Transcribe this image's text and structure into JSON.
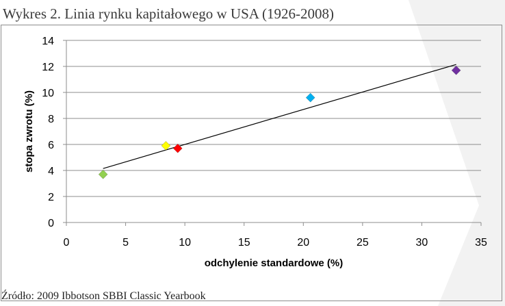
{
  "title": "Wykres 2. Linia rynku kapitałowego w USA (1926-2008)",
  "source": "Źródło: 2009 Ibbotson SBBI Classic Yearbook",
  "chart_data": {
    "type": "scatter",
    "title": "",
    "xlabel": "odchylenie standardowe (%)",
    "ylabel": "stopa zwrotu (%)",
    "xlim": [
      0,
      35
    ],
    "ylim": [
      0,
      14
    ],
    "x_ticks": [
      "0",
      "5",
      "10",
      "15",
      "20",
      "25",
      "30",
      "35"
    ],
    "y_ticks": [
      "0",
      "2",
      "4",
      "6",
      "8",
      "10",
      "12",
      "14"
    ],
    "grid": "horizontal",
    "legend": "none",
    "points": [
      {
        "x": 3.1,
        "y": 3.7,
        "color": "#92d050"
      },
      {
        "x": 8.4,
        "y": 5.9,
        "color": "#ffff00"
      },
      {
        "x": 9.4,
        "y": 5.7,
        "color": "#ff0000"
      },
      {
        "x": 20.6,
        "y": 9.6,
        "color": "#00b0f0"
      },
      {
        "x": 32.9,
        "y": 11.7,
        "color": "#7030a0"
      }
    ],
    "trendline": {
      "x": [
        3.1,
        32.9
      ],
      "y": [
        4.15,
        12.15
      ],
      "color": "#000000"
    }
  }
}
